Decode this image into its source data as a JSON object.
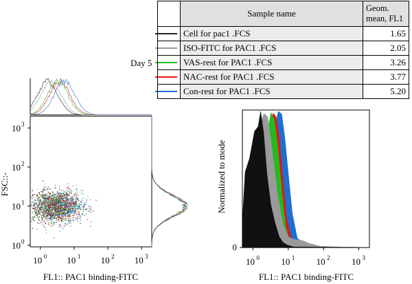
{
  "panel_label": "Day 5",
  "legend": {
    "header_name": "Sample name",
    "header_value_line1": "Geom.",
    "header_value_line2": "mean, FL1",
    "rows": [
      {
        "name": "Cell for pac1 .FCS",
        "value": "1.65",
        "color": "#222222"
      },
      {
        "name": "ISO-FITC for PAC1 .FCS",
        "value": "2.05",
        "color": "#9a9a9a"
      },
      {
        "name": "VAS-rest for PAC1 .FCS",
        "value": "3.26",
        "color": "#22bb22"
      },
      {
        "name": "NAC-rest for PAC1 .FCS",
        "value": "3.77",
        "color": "#ee1111"
      },
      {
        "name": "Con-rest for PAC1 .FCS",
        "value": "5.20",
        "color": "#1f6fd1"
      }
    ]
  },
  "chart_data": [
    {
      "type": "scatter",
      "xlabel": "FL1:: PAC1 binding-FITC",
      "ylabel": "FSC::-",
      "x_scale": "log",
      "y_scale": "log",
      "xlim": [
        0.5,
        2000
      ],
      "ylim": [
        0.9,
        2000
      ],
      "x_ticks": [
        {
          "v": 1,
          "t": "10",
          "e": "0"
        },
        {
          "v": 10,
          "t": "10",
          "e": "1"
        },
        {
          "v": 100,
          "t": "10",
          "e": "2"
        },
        {
          "v": 1000,
          "t": "10",
          "e": "3"
        }
      ],
      "y_ticks": [
        {
          "v": 1,
          "t": "10",
          "e": "0"
        },
        {
          "v": 10,
          "t": "10",
          "e": "1"
        },
        {
          "v": 100,
          "t": "10",
          "e": "2"
        },
        {
          "v": 1000,
          "t": "10",
          "e": "3"
        }
      ],
      "series": [
        {
          "name": "Cell for pac1 .FCS",
          "color": "#222222",
          "x_center": 1.65,
          "y_center": 10,
          "x_spread_decades": 0.45,
          "y_spread_decades": 0.2
        },
        {
          "name": "ISO-FITC for PAC1 .FCS",
          "color": "#9a9a9a",
          "x_center": 2.05,
          "y_center": 10,
          "x_spread_decades": 0.45,
          "y_spread_decades": 0.2
        },
        {
          "name": "VAS-rest for PAC1 .FCS",
          "color": "#22bb22",
          "x_center": 3.26,
          "y_center": 10,
          "x_spread_decades": 0.45,
          "y_spread_decades": 0.2
        },
        {
          "name": "NAC-rest for PAC1 .FCS",
          "color": "#ee1111",
          "x_center": 3.77,
          "y_center": 10,
          "x_spread_decades": 0.45,
          "y_spread_decades": 0.2
        },
        {
          "name": "Con-rest for PAC1 .FCS",
          "color": "#1f6fd1",
          "x_center": 5.2,
          "y_center": 10,
          "x_spread_decades": 0.45,
          "y_spread_decades": 0.2
        }
      ]
    },
    {
      "type": "area",
      "xlabel": "FL1:: PAC1 binding-FITC",
      "ylabel": "Normalized to mode",
      "x_scale": "log",
      "xlim": [
        0.5,
        2000
      ],
      "ylim": [
        0,
        1
      ],
      "x_ticks": [
        {
          "v": 1,
          "t": "10",
          "e": "0"
        },
        {
          "v": 10,
          "t": "10",
          "e": "1"
        },
        {
          "v": 100,
          "t": "10",
          "e": "2"
        },
        {
          "v": 1000,
          "t": "10",
          "e": "3"
        }
      ],
      "y_ticks": [
        {
          "v": 0,
          "t": "0"
        }
      ],
      "series": [
        {
          "name": "Con-rest for PAC1 .FCS",
          "color": "#1f6fd1",
          "mode": 5.2,
          "x": [
            0.5,
            0.8,
            1.5,
            2.5,
            3.5,
            4.5,
            5.2,
            6.5,
            8,
            10,
            13,
            18,
            30,
            60,
            200,
            2000
          ],
          "y": [
            0.03,
            0.25,
            0.45,
            0.62,
            0.78,
            0.9,
            1.0,
            0.96,
            0.82,
            0.55,
            0.25,
            0.07,
            0.02,
            0.01,
            0.005,
            0
          ]
        },
        {
          "name": "NAC-rest for PAC1 .FCS",
          "color": "#ee1111",
          "mode": 3.77,
          "x": [
            0.5,
            0.8,
            1.5,
            2.3,
            3.0,
            3.77,
            4.5,
            5.5,
            7,
            9,
            12,
            20,
            60,
            2000
          ],
          "y": [
            0.03,
            0.28,
            0.5,
            0.72,
            0.9,
            1.0,
            0.95,
            0.8,
            0.5,
            0.22,
            0.07,
            0.02,
            0.005,
            0
          ]
        },
        {
          "name": "VAS-rest for PAC1 .FCS",
          "color": "#22bb22",
          "mode": 3.26,
          "x": [
            0.5,
            0.8,
            1.5,
            2.2,
            2.8,
            3.26,
            4,
            5,
            6.5,
            8.5,
            11,
            16,
            60,
            2000
          ],
          "y": [
            0.03,
            0.3,
            0.55,
            0.75,
            0.92,
            1.0,
            0.95,
            0.75,
            0.42,
            0.15,
            0.05,
            0.015,
            0.005,
            0
          ]
        },
        {
          "name": "ISO-FITC for PAC1 .FCS",
          "color": "#9a9a9a",
          "mode": 2.05,
          "x": [
            0.5,
            0.7,
            1.0,
            1.5,
            2.05,
            2.6,
            3.5,
            5,
            7,
            10,
            15,
            25,
            40,
            80,
            200,
            2000
          ],
          "y": [
            0.05,
            0.35,
            0.6,
            0.88,
            1.0,
            0.93,
            0.7,
            0.38,
            0.18,
            0.08,
            0.06,
            0.05,
            0.03,
            0.01,
            0.005,
            0
          ]
        },
        {
          "name": "Cell for pac1 .FCS",
          "color": "#111111",
          "mode": 1.65,
          "x": [
            0.5,
            0.6,
            0.8,
            1.1,
            1.4,
            1.65,
            2.0,
            2.5,
            3.2,
            4.2,
            5.5,
            7,
            9,
            14,
            2000
          ],
          "y": [
            0.2,
            0.55,
            0.65,
            0.85,
            0.9,
            1.0,
            0.85,
            0.55,
            0.32,
            0.18,
            0.08,
            0.04,
            0.02,
            0.005,
            0
          ]
        }
      ]
    }
  ]
}
